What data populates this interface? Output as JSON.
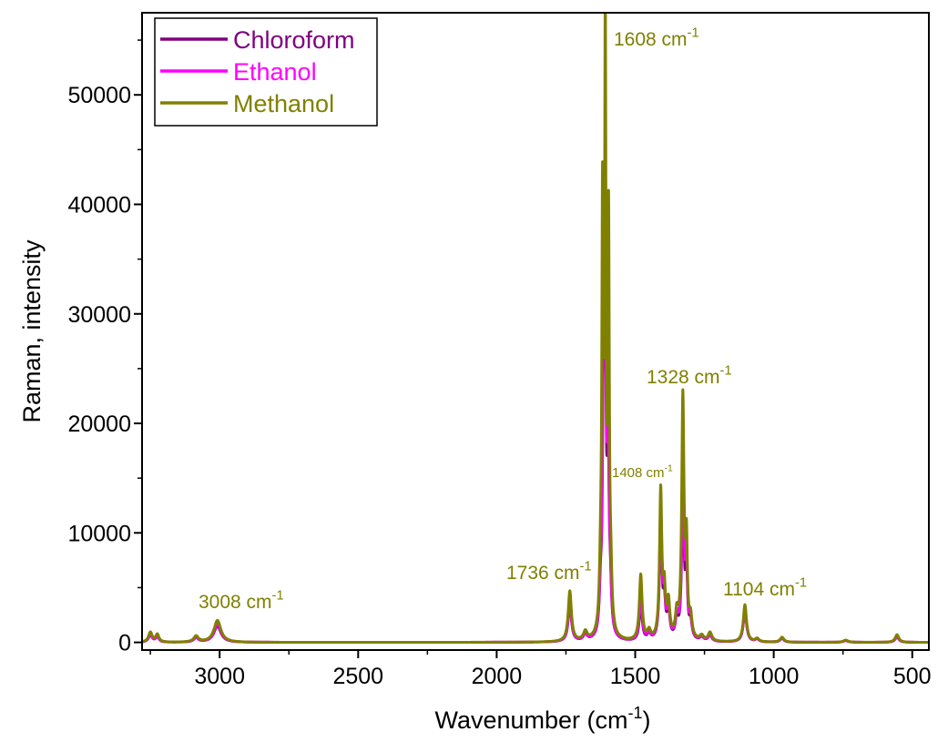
{
  "chart_data": {
    "type": "line",
    "title": "",
    "xlabel": "Wavenumber (cm",
    "xlabel_sup": "-1",
    "xlabel_tail": ")",
    "ylabel": "Raman, intensity",
    "xlim": [
      3280,
      440
    ],
    "ylim": [
      -700,
      57500
    ],
    "x_reversed": true,
    "x_ticks": [
      3000,
      2500,
      2000,
      1500,
      1000,
      500
    ],
    "y_ticks": [
      0,
      10000,
      20000,
      30000,
      40000,
      50000
    ],
    "grid": false,
    "legend_position": "top-left",
    "series": [
      {
        "name": "Chloroform",
        "color": "#800080",
        "peaks": [
          [
            3250,
            650,
            8
          ],
          [
            3225,
            480,
            7
          ],
          [
            3085,
            380,
            10
          ],
          [
            3008,
            1500,
            15
          ],
          [
            1736,
            3400,
            7
          ],
          [
            1680,
            600,
            8
          ],
          [
            1625,
            3500,
            5
          ],
          [
            1615,
            19000,
            4
          ],
          [
            1608,
            31000,
            3
          ],
          [
            1598,
            17000,
            4
          ],
          [
            1590,
            3500,
            5
          ],
          [
            1480,
            3400,
            6
          ],
          [
            1450,
            600,
            7
          ],
          [
            1408,
            11000,
            5
          ],
          [
            1395,
            3200,
            5
          ],
          [
            1380,
            2600,
            6
          ],
          [
            1350,
            1800,
            6
          ],
          [
            1328,
            13500,
            5
          ],
          [
            1315,
            6500,
            4
          ],
          [
            1300,
            1500,
            6
          ],
          [
            1260,
            350,
            8
          ],
          [
            1230,
            550,
            8
          ],
          [
            1104,
            2900,
            7
          ],
          [
            1060,
            250,
            8
          ],
          [
            970,
            350,
            8
          ],
          [
            740,
            150,
            10
          ],
          [
            555,
            500,
            8
          ]
        ]
      },
      {
        "name": "Ethanol",
        "color": "#ff00ff",
        "peaks": [
          [
            3250,
            700,
            8
          ],
          [
            3225,
            520,
            7
          ],
          [
            3085,
            400,
            10
          ],
          [
            3008,
            1700,
            15
          ],
          [
            1736,
            3700,
            7
          ],
          [
            1680,
            650,
            8
          ],
          [
            1625,
            3800,
            5
          ],
          [
            1615,
            22000,
            4
          ],
          [
            1608,
            33000,
            3
          ],
          [
            1598,
            18000,
            4
          ],
          [
            1590,
            3800,
            5
          ],
          [
            1480,
            4200,
            6
          ],
          [
            1450,
            650,
            7
          ],
          [
            1408,
            12000,
            5
          ],
          [
            1395,
            3500,
            5
          ],
          [
            1380,
            2800,
            6
          ],
          [
            1350,
            1900,
            6
          ],
          [
            1328,
            16000,
            5
          ],
          [
            1315,
            7000,
            4
          ],
          [
            1300,
            1600,
            6
          ],
          [
            1260,
            380,
            8
          ],
          [
            1230,
            600,
            8
          ],
          [
            1104,
            3000,
            7
          ],
          [
            1060,
            270,
            8
          ],
          [
            970,
            380,
            8
          ],
          [
            740,
            170,
            10
          ],
          [
            555,
            550,
            8
          ]
        ]
      },
      {
        "name": "Methanol",
        "color": "#808000",
        "peaks": [
          [
            3250,
            900,
            8
          ],
          [
            3225,
            700,
            7
          ],
          [
            3085,
            550,
            10
          ],
          [
            3008,
            2000,
            15
          ],
          [
            1736,
            4600,
            7
          ],
          [
            1680,
            800,
            8
          ],
          [
            1625,
            4500,
            5
          ],
          [
            1618,
            37000,
            3
          ],
          [
            1608,
            55000,
            3
          ],
          [
            1596,
            36000,
            3
          ],
          [
            1588,
            4200,
            5
          ],
          [
            1480,
            6000,
            6
          ],
          [
            1450,
            800,
            7
          ],
          [
            1408,
            13500,
            5
          ],
          [
            1395,
            4000,
            5
          ],
          [
            1380,
            3200,
            6
          ],
          [
            1350,
            2100,
            6
          ],
          [
            1328,
            22000,
            5
          ],
          [
            1315,
            8000,
            4
          ],
          [
            1300,
            1800,
            6
          ],
          [
            1260,
            450,
            8
          ],
          [
            1230,
            800,
            8
          ],
          [
            1104,
            3400,
            7
          ],
          [
            1060,
            300,
            8
          ],
          [
            970,
            450,
            8
          ],
          [
            740,
            200,
            10
          ],
          [
            555,
            700,
            8
          ]
        ]
      }
    ],
    "annotations": [
      {
        "text": "3008 cm",
        "sup": "-1",
        "x": 3008
      },
      {
        "text": "1736 cm",
        "sup": "-1",
        "x": 1736
      },
      {
        "text": "1608 cm",
        "sup": "-1",
        "x": 1608
      },
      {
        "text": "1408 cm",
        "sup": "-1",
        "x": 1408
      },
      {
        "text": "1328 cm",
        "sup": "-1",
        "x": 1328
      },
      {
        "text": "1104 cm",
        "sup": "-1",
        "x": 1104
      }
    ]
  }
}
